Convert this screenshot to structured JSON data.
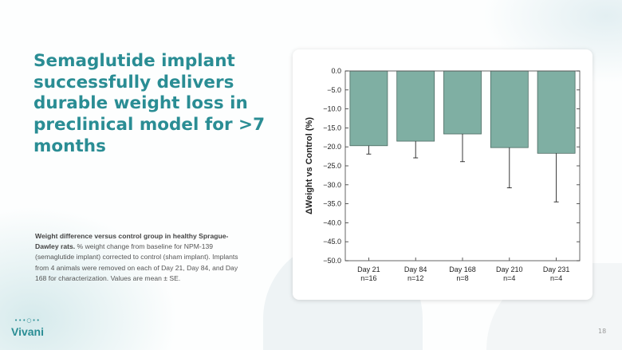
{
  "slide": {
    "title": "Semaglutide implant successfully delivers durable weight loss in preclinical model for >7 months",
    "caption_bold": "Weight difference versus control group in healthy Sprague-Dawley rats.",
    "caption_text": " % weight change from baseline for NPM-139 (semaglutide implant) corrected to control (sham implant). Implants from 4 animals were removed on each of Day 21, Day 84, and Day 168 for characterization. Values are mean ± SE.",
    "logo": "Vivani",
    "page_number": "18"
  },
  "colors": {
    "accent": "#2a8d94",
    "bar_fill": "#7fafa3",
    "bar_stroke": "#4d6b63"
  },
  "chart_data": {
    "type": "bar",
    "categories": [
      "Day 21",
      "Day 84",
      "Day 168",
      "Day 210",
      "Day 231"
    ],
    "category_sublabels": [
      "n=16",
      "n=12",
      "n=8",
      "n=4",
      "n=4"
    ],
    "values": [
      -19.7,
      -18.5,
      -16.6,
      -20.2,
      -21.7
    ],
    "error_se": [
      2.2,
      4.4,
      7.3,
      10.6,
      12.8
    ],
    "ylabel": "ΔWeight vs Control (%)",
    "xlabel": "",
    "ylim": [
      -50,
      0
    ],
    "yticks": [
      "0.0",
      "-5.0",
      "-10.0",
      "-15.0",
      "-20.0",
      "-25.0",
      "-30.0",
      "-35.0",
      "-40.0",
      "-45.0",
      "-50.0"
    ],
    "grid": false
  }
}
